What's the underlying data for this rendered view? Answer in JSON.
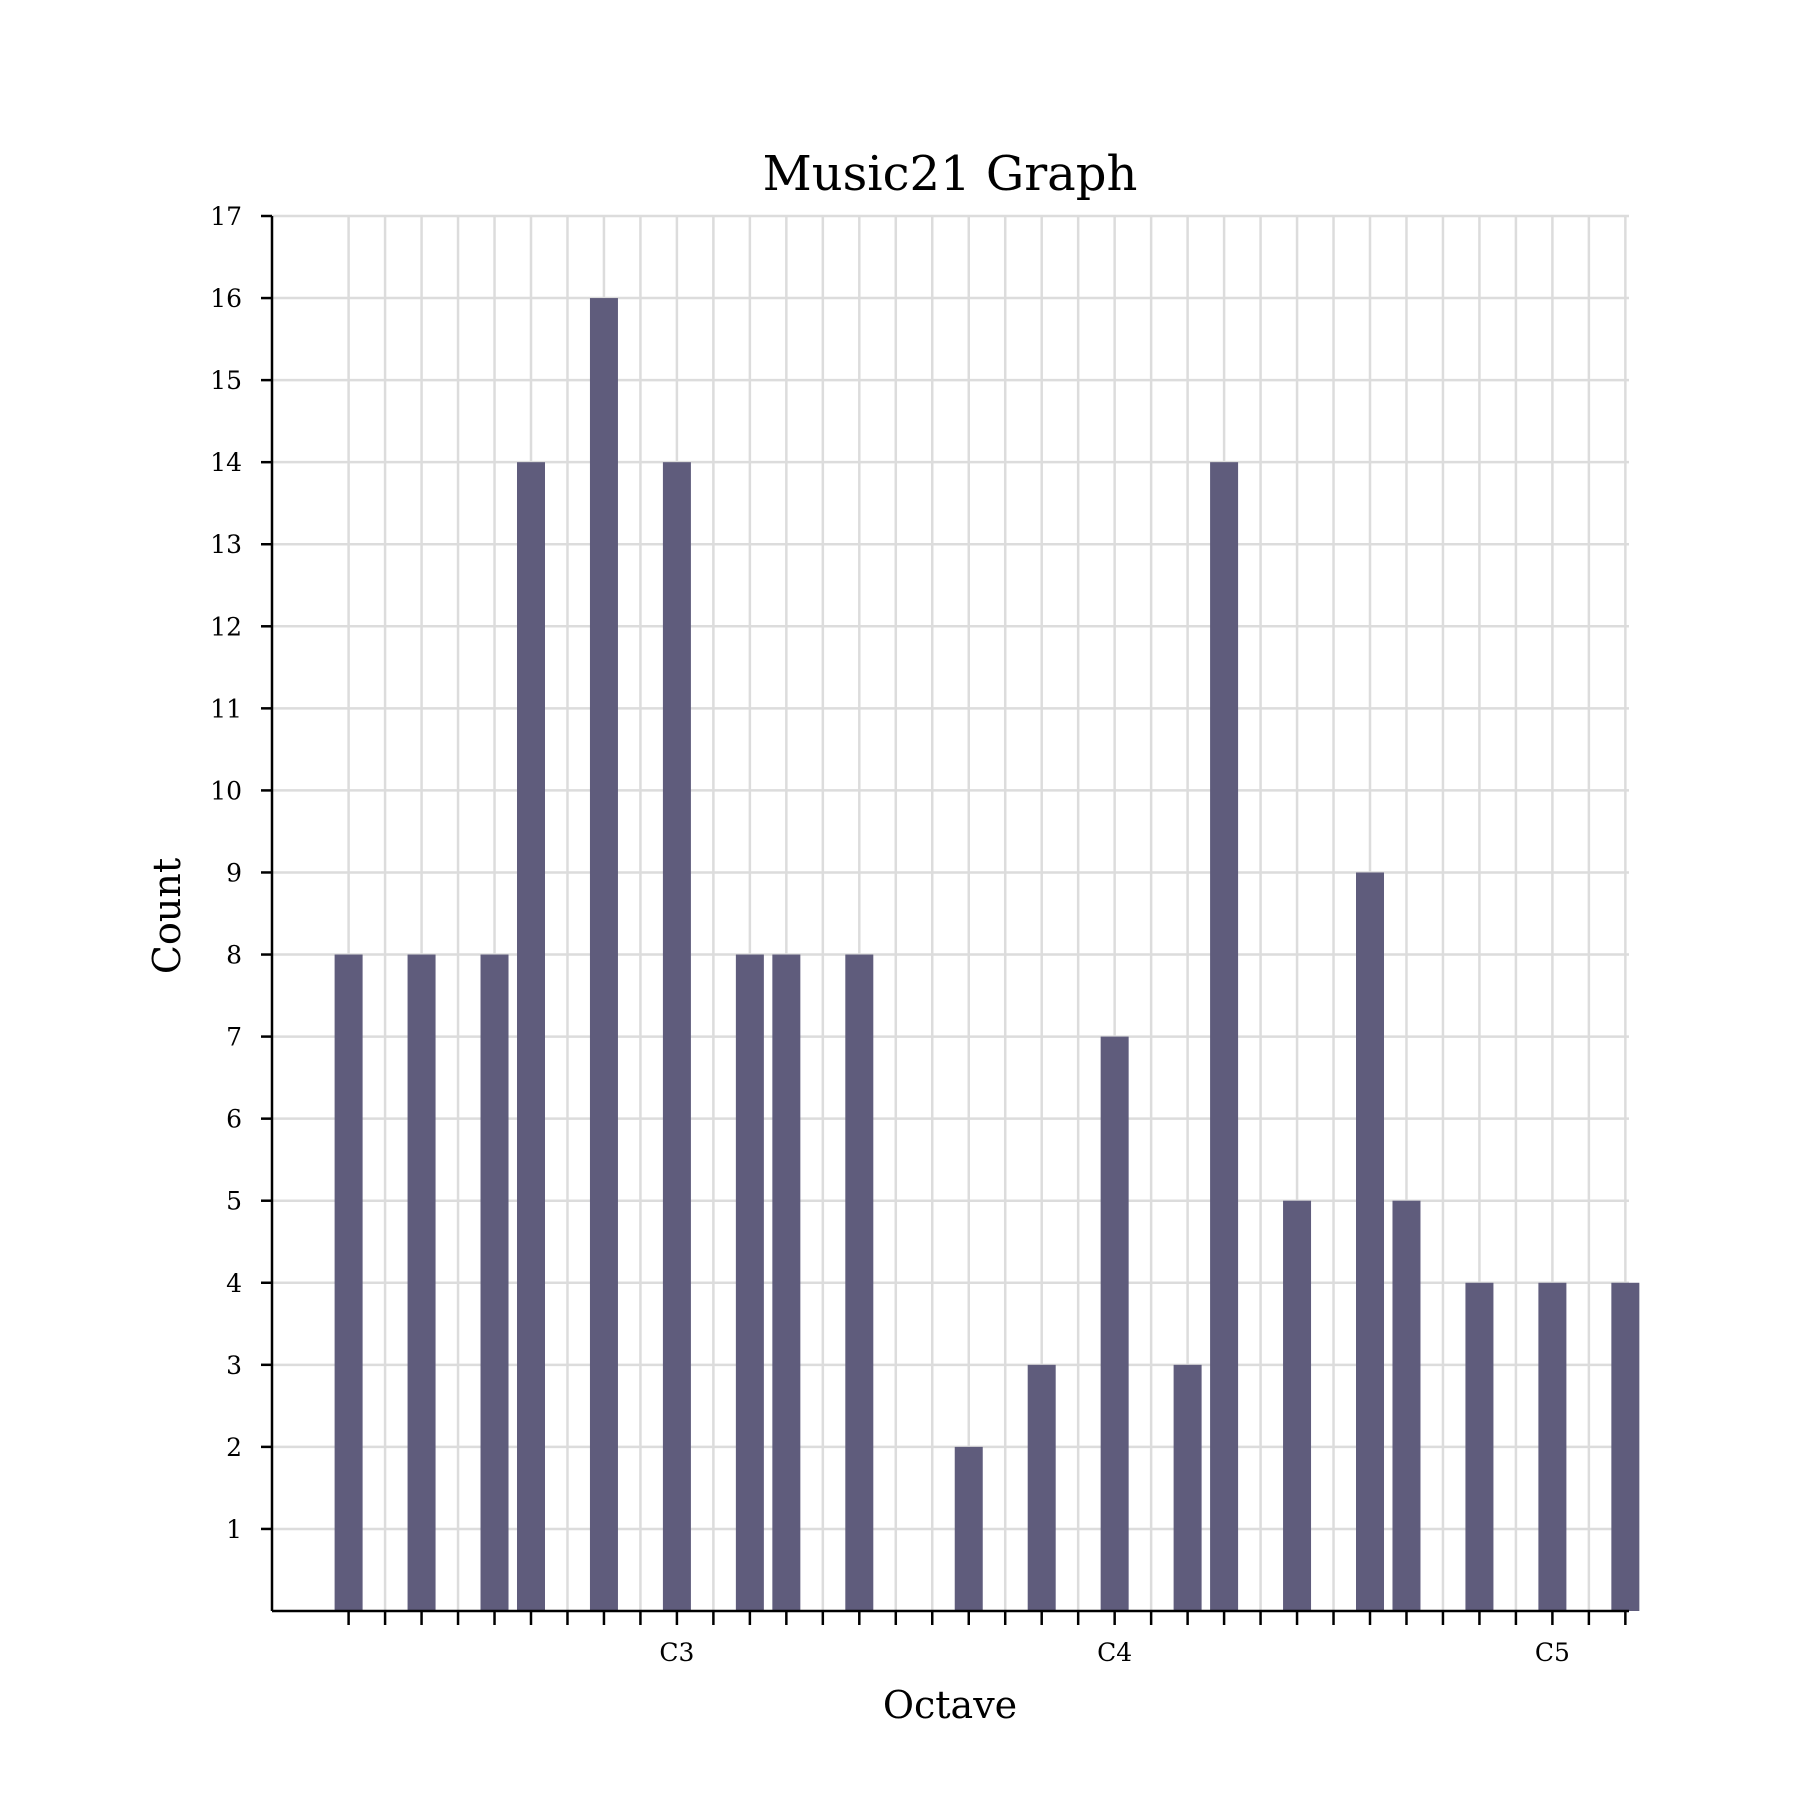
{
  "chart_data": {
    "type": "bar",
    "title": "Music21 Graph",
    "xlabel": "Octave",
    "ylabel": "Count",
    "x_tick_labels": [
      {
        "x": 43,
        "label": "C3"
      },
      {
        "x": 55,
        "label": "C4"
      },
      {
        "x": 67,
        "label": "C5"
      }
    ],
    "x_ticks": [
      34,
      35,
      36,
      37,
      38,
      39,
      40,
      41,
      42,
      43,
      44,
      45,
      46,
      47,
      48,
      49,
      50,
      51,
      52,
      53,
      54,
      55,
      56,
      57,
      58,
      59,
      60,
      61,
      62,
      63,
      64,
      65,
      66,
      67,
      68,
      69
    ],
    "xlim": [
      31.9,
      69.1
    ],
    "ylim": [
      0,
      17
    ],
    "y_ticks": [
      1,
      2,
      3,
      4,
      5,
      6,
      7,
      8,
      9,
      10,
      11,
      12,
      13,
      14,
      15,
      16,
      17
    ],
    "grid": true,
    "bar_color": "#5f5c7c",
    "series": [
      {
        "x": [
          34,
          36,
          38,
          39,
          41,
          43,
          45,
          46,
          48,
          51,
          53,
          55,
          57,
          58,
          60,
          62,
          63,
          65,
          67,
          69
        ],
        "values": [
          8,
          8,
          8,
          14,
          16,
          14,
          8,
          8,
          8,
          2,
          3,
          7,
          3,
          14,
          5,
          9,
          5,
          4,
          4,
          4
        ]
      }
    ]
  }
}
